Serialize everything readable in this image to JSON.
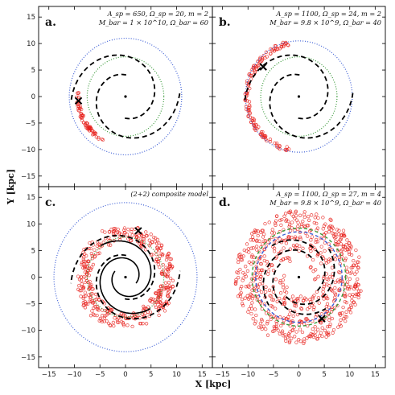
{
  "figure": {
    "xlabel": "X [kpc]",
    "ylabel": "Y [kpc]"
  },
  "chart_data": [
    {
      "type": "scatter",
      "panel_label": "a.",
      "annotation_lines": [
        "A_sp = 650, Ω_sp = 20, m = 2",
        "M_bar = 1 × 10^10, Ω_bar = 60"
      ],
      "xlim": [
        -17,
        17
      ],
      "ylim": [
        -17,
        17
      ],
      "xticks": [
        -15,
        -10,
        -5,
        0,
        5,
        10,
        15
      ],
      "yticks": [
        -15,
        -10,
        -5,
        0,
        5,
        10,
        15
      ],
      "show_xticklabels": false,
      "show_yticklabels": true,
      "spiral": {
        "arms": 2,
        "a": 5.6,
        "b": 0.2,
        "tmin": -1.6,
        "tmax": 3.25,
        "style": "dashed",
        "color": "#000000"
      },
      "circles": [
        {
          "r": 11,
          "color": "#3d5fd6",
          "style": "dotted"
        },
        {
          "r": 7.5,
          "color": "#3a9a3a",
          "style": "dotted"
        }
      ],
      "stars": {
        "type": "arc",
        "r": 9.3,
        "a0": 175,
        "a1": 242,
        "spread": 0.35,
        "n": 70
      },
      "cross": [
        -9.2,
        -0.8
      ],
      "center_dot": [
        0,
        0
      ]
    },
    {
      "type": "scatter",
      "panel_label": "b.",
      "annotation_lines": [
        "A_sp = 1100, Ω_sp = 24, m = 2",
        "M_bar = 9.8 × 10^9, Ω_bar = 40"
      ],
      "xlim": [
        -17,
        17
      ],
      "ylim": [
        -17,
        17
      ],
      "xticks": [
        -15,
        -10,
        -5,
        0,
        5,
        10,
        15
      ],
      "yticks": [
        -15,
        -10,
        -5,
        0,
        5,
        10,
        15
      ],
      "show_xticklabels": false,
      "show_yticklabels": false,
      "spiral": {
        "arms": 2,
        "a": 5.6,
        "b": 0.2,
        "tmin": -1.6,
        "tmax": 3.25,
        "style": "dashed",
        "color": "#000000"
      },
      "circles": [
        {
          "r": 10.5,
          "color": "#3d5fd6",
          "style": "dotted"
        },
        {
          "r": 7.5,
          "color": "#3a9a3a",
          "style": "dotted"
        }
      ],
      "stars": {
        "type": "arc",
        "r": 10.2,
        "a0": 100,
        "a1": 260,
        "spread": 0.45,
        "n": 140
      },
      "cross": [
        -7,
        5.6
      ],
      "center_dot": [
        0,
        0
      ]
    },
    {
      "type": "scatter",
      "panel_label": "c.",
      "annotation_lines": [
        "(2+2) composite model"
      ],
      "xlim": [
        -17,
        17
      ],
      "ylim": [
        -17,
        17
      ],
      "xticks": [
        -15,
        -10,
        -5,
        0,
        5,
        10,
        15
      ],
      "yticks": [
        -15,
        -10,
        -5,
        0,
        5,
        10,
        15
      ],
      "show_xticklabels": true,
      "show_yticklabels": true,
      "spiral": {
        "arms": 2,
        "a": 5.6,
        "b": 0.2,
        "tmin": -1.6,
        "tmax": 3.25,
        "style": "dashed",
        "color": "#000000"
      },
      "spiral2": {
        "arms": 2,
        "a": 2.6,
        "b": 0.2,
        "tmin": -0.5,
        "tmax": 5.4,
        "style": "solid",
        "color": "#000000"
      },
      "circles": [
        {
          "r": 14,
          "color": "#3d5fd6",
          "style": "dotted"
        },
        {
          "r": 7.5,
          "color": "#3a9a3a",
          "style": "dotted"
        }
      ],
      "stars": {
        "type": "ring",
        "r": 8.2,
        "spread": 1.8,
        "n": 420
      },
      "cross": [
        2.5,
        8.7
      ],
      "center_dot": [
        0,
        0
      ]
    },
    {
      "type": "scatter",
      "panel_label": "d.",
      "annotation_lines": [
        "A_sp = 1100, Ω_sp = 27, m = 4",
        "M_bar = 9.8 × 10^9, Ω_bar = 40"
      ],
      "xlim": [
        -17,
        17
      ],
      "ylim": [
        -17,
        17
      ],
      "xticks": [
        -15,
        -10,
        -5,
        0,
        5,
        10,
        15
      ],
      "yticks": [
        -15,
        -10,
        -5,
        0,
        5,
        10,
        15
      ],
      "show_xticklabels": true,
      "show_yticklabels": false,
      "spiral": {
        "arms": 4,
        "a": 5.0,
        "b": 0.2,
        "tmin": -0.6,
        "tmax": 2.3,
        "style": "dashed",
        "color": "#000000"
      },
      "circles": [
        {
          "r": 8.5,
          "color": "#3d5fd6",
          "style": "dashed"
        },
        {
          "r": 9.2,
          "color": "#3a9a3a",
          "style": "dashed"
        }
      ],
      "stars": {
        "type": "disk",
        "rmin": 2.5,
        "rmax": 12.5,
        "n": 700
      },
      "cross": [
        4.5,
        -7.8
      ],
      "center_dot": [
        0,
        0
      ]
    }
  ]
}
